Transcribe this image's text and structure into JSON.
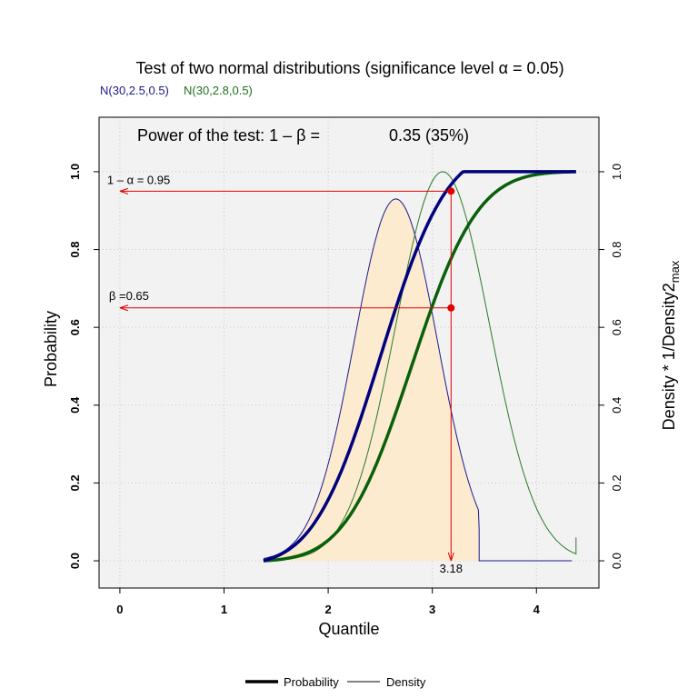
{
  "chart_data": {
    "type": "line",
    "title": "Test of two normal distributions (significance level α = 0.05)",
    "distribution_labels": [
      {
        "text": "N(30,2.5,0.5)",
        "color": "#1a1a8c"
      },
      {
        "text": "N(30,2.8,0.5)",
        "color": "#1f6f1f"
      }
    ],
    "power_label": "Power of the test: 1 – β =",
    "power_value": "0.35 (35%)",
    "xlabel": "Quantile",
    "ylabel": "Probability",
    "y2label": "Density * 1/Density2",
    "y2label_sub": "max",
    "xlim": [
      -0.2,
      4.6
    ],
    "ylim": [
      -0.07,
      1.14
    ],
    "x_ticks": [
      0,
      1,
      2,
      3,
      4
    ],
    "y_ticks": [
      0.0,
      0.2,
      0.4,
      0.6,
      0.8,
      1.0
    ],
    "y_tick_labels": [
      "0.0",
      "0.2",
      "0.4",
      "0.6",
      "0.8",
      "1.0"
    ],
    "grid": true,
    "x_range_curves": [
      1.38,
      4.38
    ],
    "critical_x": 3.18,
    "critical_x_label": "3.18",
    "alpha_line": {
      "y": 0.95,
      "label": "1 – α = 0.95"
    },
    "beta_line": {
      "y": 0.65,
      "label": "β =0.65"
    },
    "series": [
      {
        "name": "N(30,2.5,0.5)",
        "kind": "probability",
        "color": "#00007f",
        "mean": 2.5,
        "sd": 0.5,
        "cdf_lo": 0.0,
        "cdf_hi": 1.0,
        "width": 3.5
      },
      {
        "name": "N(30,2.8,0.5)",
        "kind": "probability",
        "color": "#0a600a",
        "mean": 2.8,
        "sd": 0.5,
        "cdf_lo": 0.0,
        "cdf_hi": 1.0,
        "width": 3.5
      },
      {
        "name": "N(30,2.5,0.5)",
        "kind": "density",
        "color": "#1a1a8c",
        "peak_x": 2.65,
        "peak_y": 0.93,
        "width": 1
      },
      {
        "name": "N(30,2.8,0.5)",
        "kind": "density",
        "color": "#2a7a2a",
        "peak_x": 3.1,
        "peak_y": 1.0,
        "width": 1
      }
    ],
    "legend": {
      "placement": "bottom",
      "items": [
        {
          "label": "Probability",
          "style": "thick"
        },
        {
          "label": "Density",
          "style": "thin"
        }
      ]
    },
    "fill_color": "#fdebd0",
    "colors": {
      "panel": "#f2f2f2",
      "marker": "#e00000",
      "arrow": "#e00000"
    }
  }
}
